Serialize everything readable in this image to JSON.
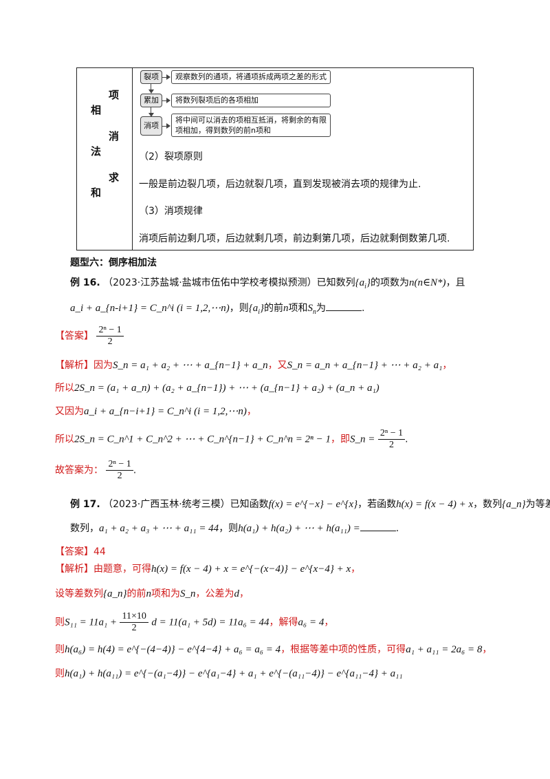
{
  "table": {
    "left_chars": [
      "相",
      "法",
      "和"
    ],
    "mid_chars": [
      "项",
      "消",
      "求"
    ],
    "flow": [
      {
        "label": "裂项",
        "desc": "观察数列的通项，将通项拆成两项之差的形式"
      },
      {
        "label": "累加",
        "desc": "将数列裂项后的各项相加"
      },
      {
        "label": "消项",
        "desc_line1": "将中间可以消去的项相互抵消，将剩余的有限",
        "desc_line2": "项相加，得到数列的前n项和"
      }
    ],
    "principle_title": "（2）裂项原则",
    "principle_text": "一般是前边裂几项，后边就裂几项，直到发现被消去项的规律为止.",
    "rule_title": "（3）消项规律",
    "rule_text": "消项后前边剩几项，后边就剩几项，前边剩第几项，后边就剩倒数第几项."
  },
  "section_title": "题型六：倒序相加法",
  "ex16": {
    "label": "例 16.",
    "source": "（2023·江苏盐城·盐城市伍佑中学校考模拟预测）已知数列",
    "t_seq": "{a",
    "t_count": "的项数为",
    "t_and": "，且",
    "cond": "a_i + a_{n-i+1} = C_n^i (i = 1,2,⋯n)",
    "t_then": "，则",
    "t_first": "的前",
    "t_n": "n",
    "t_sum": "项和",
    "t_wei": "为",
    "answer_tag": "【答案】",
    "answer_num": "2ⁿ − 1",
    "answer_den": "2",
    "analysis_tag": "【解析】",
    "a1_pre": "因为",
    "a1_formula": "S_n = a₁ + a₂ + ⋯ + a_{n−1} + a_n",
    "a1_mid": "，又",
    "a1_formula2": "S_n = a_n + a_{n−1} + ⋯ + a₂ + a₁",
    "a2_pre": "所以",
    "a2_formula": "2S_n = (a₁ + a_n) + (a₂ + a_{n−1}) + ⋯ + (a_{n−1} + a₂) + (a_n + a₁)",
    "a3_pre": "又因为",
    "a3_formula": "a_i + a_{n−i+1} = C_n^i (i = 1,2,⋯n)",
    "a4_pre": "所以",
    "a4_formula": "2S_n = C_n^1 + C_n^2 + ⋯ + C_n^{n−1} + C_n^n = 2ⁿ − 1",
    "a4_mid": "，即",
    "a4_lhs": "S_n =",
    "frac_num": "2ⁿ − 1",
    "frac_den": "2",
    "a5_pre": "故答案为：",
    "a5_num": "2ⁿ − 1",
    "a5_den": "2"
  },
  "ex17": {
    "label": "例 17.",
    "source": "（2023·广西玉林·统考三模）已知函数",
    "f_def": "f(x) = e^{−x} − e^{x}",
    "t_if": "，若函数",
    "h_def": "h(x) = f(x − 4) + x",
    "t_seq": "，数列",
    "seq": "{a_n}",
    "t_arith": "为等差",
    "line2_start": "数列，",
    "sum_cond": "a₁ + a₂ + a₃ + ⋯ + a₁₁ = 44",
    "t_then": "，则",
    "h_sum": "h(a₁) + h(a₂) + ⋯ + h(a₁₁) =",
    "answer_tag": "【答案】",
    "answer": "44",
    "analysis_tag": "【解析】",
    "b1_pre": "由题意，可得",
    "b1_formula": "h(x) = f(x − 4) + x = e^{−(x−4)} − e^{x−4} + x",
    "b2_pre": "设等差数列",
    "b2_seq": "{a_n}",
    "b2_mid": "的前",
    "b2_n": "n",
    "b2_mid2": "项和为",
    "b2_sn": "S_n",
    "b2_mid3": "，公差为",
    "b2_d": "d",
    "b3_pre": "则",
    "b3_formula_a": "S₁₁ = 11a₁ +",
    "b3_num": "11×10",
    "b3_den": "2",
    "b3_formula_b": "d = 11(a₁ + 5d) = 11a₆ = 44",
    "b3_mid": "，解得",
    "b3_res": "a₆ = 4",
    "b4_pre": "则",
    "b4_formula": "h(a₆) = h(4) = e^{−(4−4)} − e^{4−4} + a₆ = a₆ = 4",
    "b4_mid": "，根据等差中项的性质，可得",
    "b4_res": "a₁ + a₁₁ = 2a₆ = 8",
    "b5_pre": "则",
    "b5_formula": "h(a₁) + h(a₁₁) = e^{−(a₁−4)} − e^{a₁−4} + a₁ + e^{−(a₁₁−4)} − e^{a₁₁−4} + a₁₁"
  }
}
